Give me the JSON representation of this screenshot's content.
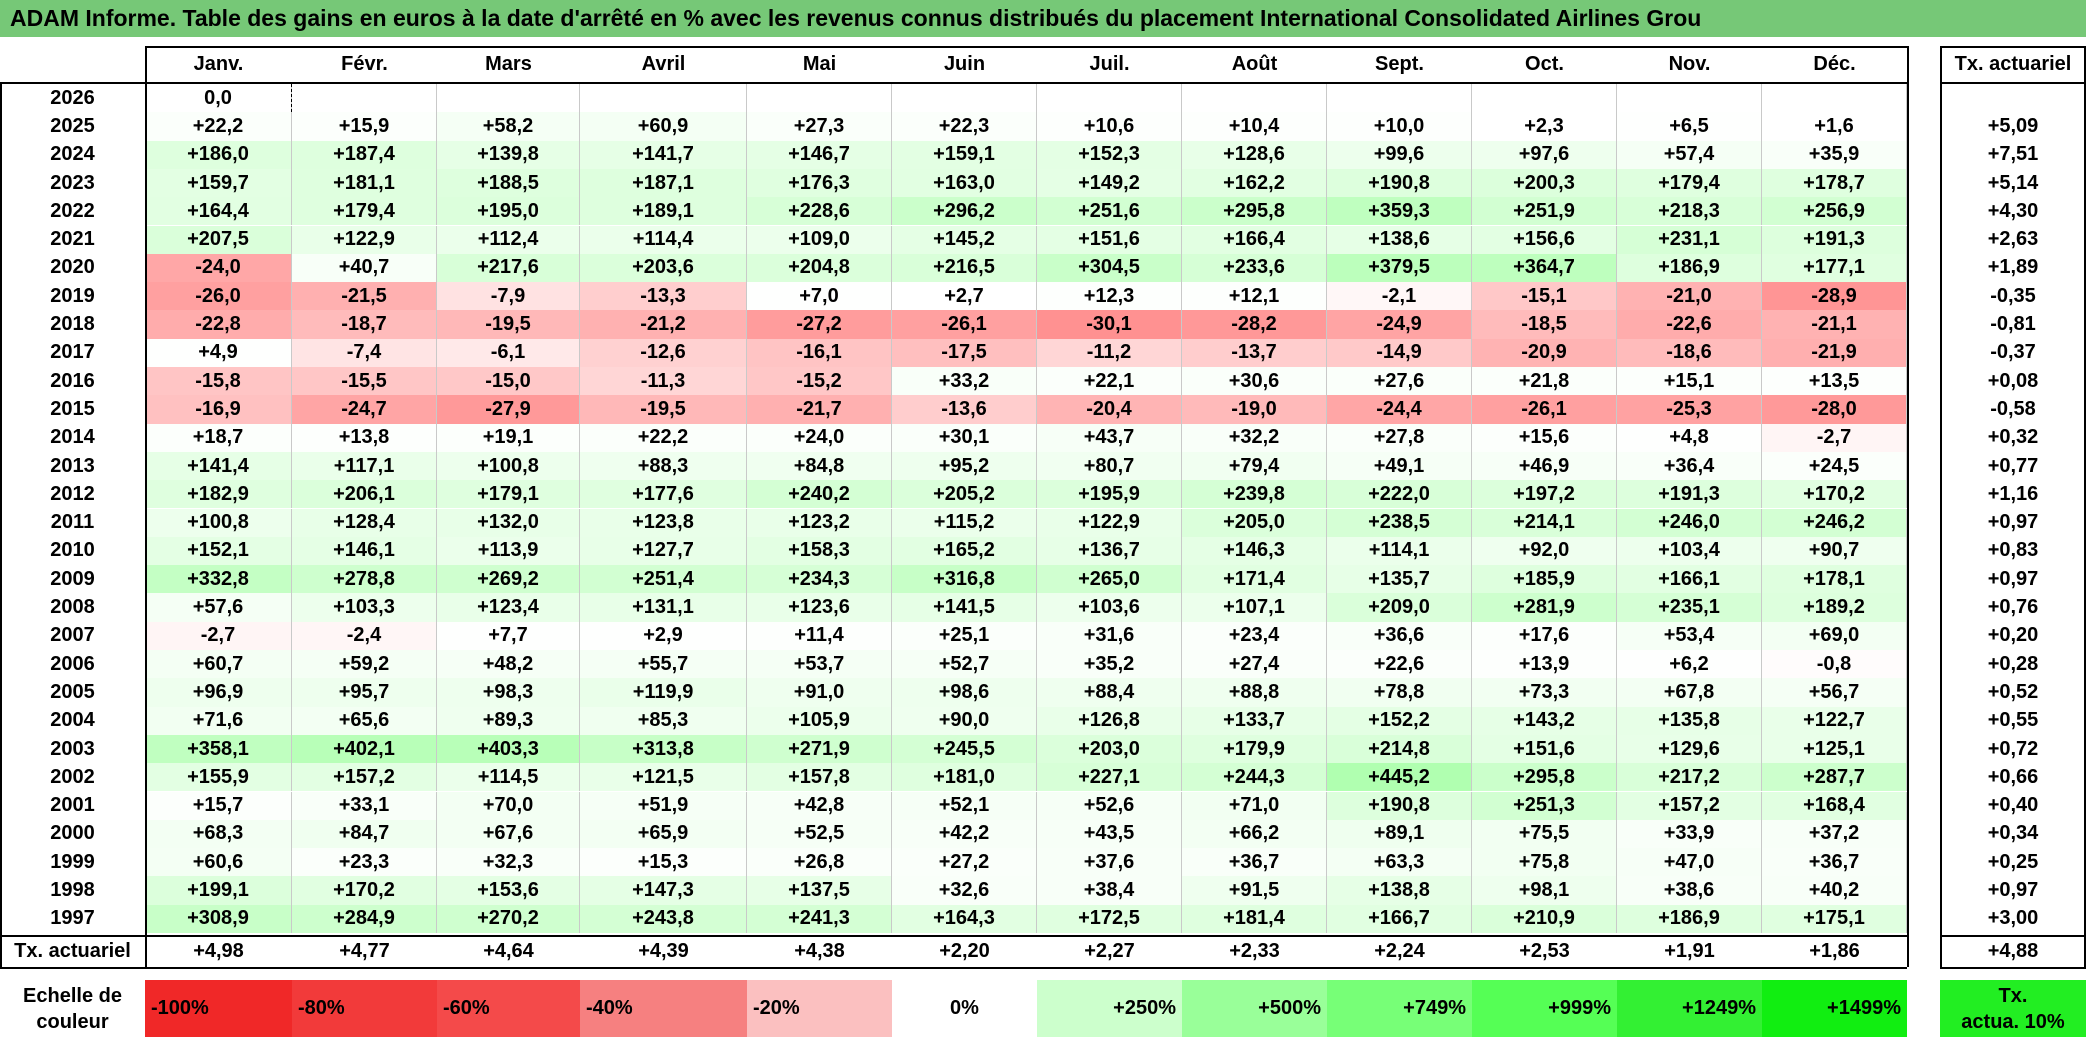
{
  "title": "ADAM Informe. Table des gains en euros à la date d'arrêté en % avec les revenus connus distribués du placement International Consolidated Airlines Grou",
  "chart_data": {
    "type": "heatmap",
    "months": [
      "Janv.",
      "Févr.",
      "Mars",
      "Avril",
      "Mai",
      "Juin",
      "Juil.",
      "Août",
      "Sept.",
      "Oct.",
      "Nov.",
      "Déc."
    ],
    "right_column_header": "Tx. actuariel",
    "rows": [
      {
        "year": "2026",
        "values": [
          "0,0"
        ],
        "tx": ""
      },
      {
        "year": "2025",
        "values": [
          "+22,2",
          "+15,9",
          "+58,2",
          "+60,9",
          "+27,3",
          "+22,3",
          "+10,6",
          "+10,4",
          "+10,0",
          "+2,3",
          "+6,5",
          "+1,6"
        ],
        "tx": "+5,09"
      },
      {
        "year": "2024",
        "values": [
          "+186,0",
          "+187,4",
          "+139,8",
          "+141,7",
          "+146,7",
          "+159,1",
          "+152,3",
          "+128,6",
          "+99,6",
          "+97,6",
          "+57,4",
          "+35,9"
        ],
        "tx": "+7,51"
      },
      {
        "year": "2023",
        "values": [
          "+159,7",
          "+181,1",
          "+188,5",
          "+187,1",
          "+176,3",
          "+163,0",
          "+149,2",
          "+162,2",
          "+190,8",
          "+200,3",
          "+179,4",
          "+178,7"
        ],
        "tx": "+5,14"
      },
      {
        "year": "2022",
        "values": [
          "+164,4",
          "+179,4",
          "+195,0",
          "+189,1",
          "+228,6",
          "+296,2",
          "+251,6",
          "+295,8",
          "+359,3",
          "+251,9",
          "+218,3",
          "+256,9"
        ],
        "tx": "+4,30"
      },
      {
        "year": "2021",
        "values": [
          "+207,5",
          "+122,9",
          "+112,4",
          "+114,4",
          "+109,0",
          "+145,2",
          "+151,6",
          "+166,4",
          "+138,6",
          "+156,6",
          "+231,1",
          "+191,3"
        ],
        "tx": "+2,63"
      },
      {
        "year": "2020",
        "values": [
          "-24,0",
          "+40,7",
          "+217,6",
          "+203,6",
          "+204,8",
          "+216,5",
          "+304,5",
          "+233,6",
          "+379,5",
          "+364,7",
          "+186,9",
          "+177,1"
        ],
        "tx": "+1,89"
      },
      {
        "year": "2019",
        "values": [
          "-26,0",
          "-21,5",
          "-7,9",
          "-13,3",
          "+7,0",
          "+2,7",
          "+12,3",
          "+12,1",
          "-2,1",
          "-15,1",
          "-21,0",
          "-28,9"
        ],
        "tx": "-0,35"
      },
      {
        "year": "2018",
        "values": [
          "-22,8",
          "-18,7",
          "-19,5",
          "-21,2",
          "-27,2",
          "-26,1",
          "-30,1",
          "-28,2",
          "-24,9",
          "-18,5",
          "-22,6",
          "-21,1"
        ],
        "tx": "-0,81"
      },
      {
        "year": "2017",
        "values": [
          "+4,9",
          "-7,4",
          "-6,1",
          "-12,6",
          "-16,1",
          "-17,5",
          "-11,2",
          "-13,7",
          "-14,9",
          "-20,9",
          "-18,6",
          "-21,9"
        ],
        "tx": "-0,37"
      },
      {
        "year": "2016",
        "values": [
          "-15,8",
          "-15,5",
          "-15,0",
          "-11,3",
          "-15,2",
          "+33,2",
          "+22,1",
          "+30,6",
          "+27,6",
          "+21,8",
          "+15,1",
          "+13,5"
        ],
        "tx": "+0,08"
      },
      {
        "year": "2015",
        "values": [
          "-16,9",
          "-24,7",
          "-27,9",
          "-19,5",
          "-21,7",
          "-13,6",
          "-20,4",
          "-19,0",
          "-24,4",
          "-26,1",
          "-25,3",
          "-28,0"
        ],
        "tx": "-0,58"
      },
      {
        "year": "2014",
        "values": [
          "+18,7",
          "+13,8",
          "+19,1",
          "+22,2",
          "+24,0",
          "+30,1",
          "+43,7",
          "+32,2",
          "+27,8",
          "+15,6",
          "+4,8",
          "-2,7"
        ],
        "tx": "+0,32"
      },
      {
        "year": "2013",
        "values": [
          "+141,4",
          "+117,1",
          "+100,8",
          "+88,3",
          "+84,8",
          "+95,2",
          "+80,7",
          "+79,4",
          "+49,1",
          "+46,9",
          "+36,4",
          "+24,5"
        ],
        "tx": "+0,77"
      },
      {
        "year": "2012",
        "values": [
          "+182,9",
          "+206,1",
          "+179,1",
          "+177,6",
          "+240,2",
          "+205,2",
          "+195,9",
          "+239,8",
          "+222,0",
          "+197,2",
          "+191,3",
          "+170,2"
        ],
        "tx": "+1,16"
      },
      {
        "year": "2011",
        "values": [
          "+100,8",
          "+128,4",
          "+132,0",
          "+123,8",
          "+123,2",
          "+115,2",
          "+122,9",
          "+205,0",
          "+238,5",
          "+214,1",
          "+246,0",
          "+246,2"
        ],
        "tx": "+0,97"
      },
      {
        "year": "2010",
        "values": [
          "+152,1",
          "+146,1",
          "+113,9",
          "+127,7",
          "+158,3",
          "+165,2",
          "+136,7",
          "+146,3",
          "+114,1",
          "+92,0",
          "+103,4",
          "+90,7"
        ],
        "tx": "+0,83"
      },
      {
        "year": "2009",
        "values": [
          "+332,8",
          "+278,8",
          "+269,2",
          "+251,4",
          "+234,3",
          "+316,8",
          "+265,0",
          "+171,4",
          "+135,7",
          "+185,9",
          "+166,1",
          "+178,1"
        ],
        "tx": "+0,97"
      },
      {
        "year": "2008",
        "values": [
          "+57,6",
          "+103,3",
          "+123,4",
          "+131,1",
          "+123,6",
          "+141,5",
          "+103,6",
          "+107,1",
          "+209,0",
          "+281,9",
          "+235,1",
          "+189,2"
        ],
        "tx": "+0,76"
      },
      {
        "year": "2007",
        "values": [
          "-2,7",
          "-2,4",
          "+7,7",
          "+2,9",
          "+11,4",
          "+25,1",
          "+31,6",
          "+23,4",
          "+36,6",
          "+17,6",
          "+53,4",
          "+69,0"
        ],
        "tx": "+0,20"
      },
      {
        "year": "2006",
        "values": [
          "+60,7",
          "+59,2",
          "+48,2",
          "+55,7",
          "+53,7",
          "+52,7",
          "+35,2",
          "+27,4",
          "+22,6",
          "+13,9",
          "+6,2",
          "-0,8"
        ],
        "tx": "+0,28"
      },
      {
        "year": "2005",
        "values": [
          "+96,9",
          "+95,7",
          "+98,3",
          "+119,9",
          "+91,0",
          "+98,6",
          "+88,4",
          "+88,8",
          "+78,8",
          "+73,3",
          "+67,8",
          "+56,7"
        ],
        "tx": "+0,52"
      },
      {
        "year": "2004",
        "values": [
          "+71,6",
          "+65,6",
          "+89,3",
          "+85,3",
          "+105,9",
          "+90,0",
          "+126,8",
          "+133,7",
          "+152,2",
          "+143,2",
          "+135,8",
          "+122,7"
        ],
        "tx": "+0,55"
      },
      {
        "year": "2003",
        "values": [
          "+358,1",
          "+402,1",
          "+403,3",
          "+313,8",
          "+271,9",
          "+245,5",
          "+203,0",
          "+179,9",
          "+214,8",
          "+151,6",
          "+129,6",
          "+125,1"
        ],
        "tx": "+0,72"
      },
      {
        "year": "2002",
        "values": [
          "+155,9",
          "+157,2",
          "+114,5",
          "+121,5",
          "+157,8",
          "+181,0",
          "+227,1",
          "+244,3",
          "+445,2",
          "+295,8",
          "+217,2",
          "+287,7"
        ],
        "tx": "+0,66"
      },
      {
        "year": "2001",
        "values": [
          "+15,7",
          "+33,1",
          "+70,0",
          "+51,9",
          "+42,8",
          "+52,1",
          "+52,6",
          "+71,0",
          "+190,8",
          "+251,3",
          "+157,2",
          "+168,4"
        ],
        "tx": "+0,40"
      },
      {
        "year": "2000",
        "values": [
          "+68,3",
          "+84,7",
          "+67,6",
          "+65,9",
          "+52,5",
          "+42,2",
          "+43,5",
          "+66,2",
          "+89,1",
          "+75,5",
          "+33,9",
          "+37,2"
        ],
        "tx": "+0,34"
      },
      {
        "year": "1999",
        "values": [
          "+60,6",
          "+23,3",
          "+32,3",
          "+15,3",
          "+26,8",
          "+27,2",
          "+37,6",
          "+36,7",
          "+63,3",
          "+75,8",
          "+47,0",
          "+36,7"
        ],
        "tx": "+0,25"
      },
      {
        "year": "1998",
        "values": [
          "+199,1",
          "+170,2",
          "+153,6",
          "+147,3",
          "+137,5",
          "+32,6",
          "+38,4",
          "+91,5",
          "+138,8",
          "+98,1",
          "+38,6",
          "+40,2"
        ],
        "tx": "+0,97"
      },
      {
        "year": "1997",
        "values": [
          "+308,9",
          "+284,9",
          "+270,2",
          "+243,8",
          "+241,3",
          "+164,3",
          "+172,5",
          "+181,4",
          "+166,7",
          "+210,9",
          "+186,9",
          "+175,1"
        ],
        "tx": "+3,00"
      }
    ],
    "footer": {
      "label": "Tx. actuariel",
      "values": [
        "+4,98",
        "+4,77",
        "+4,64",
        "+4,39",
        "+4,38",
        "+2,20",
        "+2,27",
        "+2,33",
        "+2,24",
        "+2,53",
        "+1,91",
        "+1,86"
      ],
      "total": "+4,88"
    },
    "scale": {
      "label_line1": "Echelle de",
      "label_line2": "couleur",
      "stops": [
        {
          "label": "-100%",
          "color": "#f02828",
          "align": "left"
        },
        {
          "label": "-80%",
          "color": "#f23a3a",
          "align": "left"
        },
        {
          "label": "-60%",
          "color": "#f44a4a",
          "align": "left"
        },
        {
          "label": "-40%",
          "color": "#f68080",
          "align": "left"
        },
        {
          "label": "-20%",
          "color": "#fbc0c0",
          "align": "left"
        },
        {
          "label": "0%",
          "color": "#ffffff",
          "align": "center"
        },
        {
          "label": "+250%",
          "color": "#ccffcc",
          "align": "right"
        },
        {
          "label": "+500%",
          "color": "#99ff99",
          "align": "right"
        },
        {
          "label": "+749%",
          "color": "#77ff77",
          "align": "right"
        },
        {
          "label": "+999%",
          "color": "#55ff55",
          "align": "right"
        },
        {
          "label": "+1249%",
          "color": "#33f033",
          "align": "right"
        },
        {
          "label": "+1499%",
          "color": "#11ee11",
          "align": "right"
        }
      ],
      "right_line1": "Tx.",
      "right_line2": "actua. 10%",
      "right_color": "#22ee22"
    }
  }
}
